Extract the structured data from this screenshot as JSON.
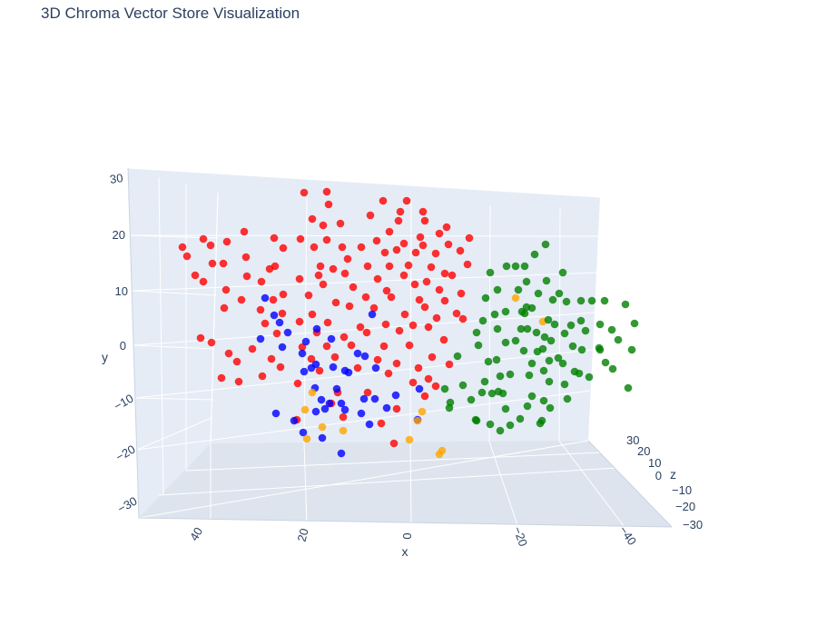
{
  "chart_data": {
    "type": "scatter",
    "title": "3D Chroma Vector Store Visualization",
    "xlabel": "x",
    "ylabel": "y",
    "zlabel": "z",
    "x_ticks": [
      "40",
      "20",
      "0",
      "−20",
      "−40"
    ],
    "y_ticks": [
      "30",
      "20",
      "10",
      "0",
      "−10",
      "−20",
      "−30"
    ],
    "z_ticks": [
      "30",
      "20",
      "10",
      "0",
      "−10",
      "−20",
      "−30"
    ],
    "colors": {
      "plot_background": "#e5ecf6",
      "grid": "#ffffff",
      "text": "#2a3f5f",
      "red": "#ff0000",
      "blue": "#0000ff",
      "orange": "#ffa500",
      "green": "#008000"
    },
    "series": [
      {
        "color": "red",
        "points": [
          [
            335,
            212
          ],
          [
            360,
            211
          ],
          [
            422,
            221
          ],
          [
            448,
            221
          ],
          [
            362,
            225
          ],
          [
            441,
            233
          ],
          [
            408,
            237
          ],
          [
            466,
            233
          ],
          [
            344,
            241
          ],
          [
            375,
            246
          ],
          [
            356,
            248
          ],
          [
            468,
            243
          ],
          [
            439,
            243
          ],
          [
            492,
            250
          ],
          [
            269,
            255
          ],
          [
            429,
            255
          ],
          [
            484,
            257
          ],
          [
            224,
            263
          ],
          [
            250,
            266
          ],
          [
            302,
            262
          ],
          [
            331,
            263
          ],
          [
            360,
            264
          ],
          [
            415,
            265
          ],
          [
            445,
            268
          ],
          [
            463,
            261
          ],
          [
            517,
            262
          ],
          [
            201,
            272
          ],
          [
            232,
            270
          ],
          [
            312,
            273
          ],
          [
            346,
            272
          ],
          [
            377,
            272
          ],
          [
            398,
            272
          ],
          [
            437,
            275
          ],
          [
            466,
            270
          ],
          [
            494,
            269
          ],
          [
            206,
            282
          ],
          [
            271,
            283
          ],
          [
            424,
            278
          ],
          [
            458,
            278
          ],
          [
            480,
            279
          ],
          [
            507,
            276
          ],
          [
            234,
            290
          ],
          [
            246,
            290
          ],
          [
            303,
            293
          ],
          [
            353,
            293
          ],
          [
            383,
            285
          ],
          [
            429,
            293
          ],
          [
            475,
            294
          ],
          [
            515,
            291
          ],
          [
            215,
            303
          ],
          [
            272,
            304
          ],
          [
            297,
            296
          ],
          [
            367,
            296
          ],
          [
            405,
            293
          ],
          [
            450,
            292
          ],
          [
            490,
            301
          ],
          [
            224,
            310
          ],
          [
            288,
            310
          ],
          [
            330,
            307
          ],
          [
            351,
            303
          ],
          [
            380,
            301
          ],
          [
            416,
            307
          ],
          [
            445,
            303
          ],
          [
            470,
            310
          ],
          [
            498,
            303
          ],
          [
            249,
            319
          ],
          [
            312,
            324
          ],
          [
            356,
            313
          ],
          [
            389,
            316
          ],
          [
            426,
            320
          ],
          [
            457,
            313
          ],
          [
            484,
            319
          ],
          [
            508,
            323
          ],
          [
            266,
            330
          ],
          [
            301,
            330
          ],
          [
            340,
            325
          ],
          [
            370,
            333
          ],
          [
            403,
            327
          ],
          [
            431,
            327
          ],
          [
            462,
            330
          ],
          [
            490,
            331
          ],
          [
            247,
            339
          ],
          [
            287,
            341
          ],
          [
            311,
            345
          ],
          [
            344,
            346
          ],
          [
            385,
            337
          ],
          [
            412,
            339
          ],
          [
            446,
            346
          ],
          [
            468,
            338
          ],
          [
            503,
            345
          ],
          [
            292,
            356
          ],
          [
            330,
            354
          ],
          [
            361,
            355
          ],
          [
            397,
            360
          ],
          [
            425,
            357
          ],
          [
            455,
            358
          ],
          [
            481,
            350
          ],
          [
            510,
            351
          ],
          [
            221,
            372
          ],
          [
            233,
            377
          ],
          [
            305,
            367
          ],
          [
            349,
            366
          ],
          [
            379,
            371
          ],
          [
            404,
            366
          ],
          [
            440,
            364
          ],
          [
            472,
            360
          ],
          [
            252,
            389
          ],
          [
            278,
            384
          ],
          [
            333,
            382
          ],
          [
            360,
            381
          ],
          [
            387,
            380
          ],
          [
            423,
            381
          ],
          [
            451,
            380
          ],
          [
            489,
            374
          ],
          [
            261,
            398
          ],
          [
            299,
            395
          ],
          [
            343,
            395
          ],
          [
            369,
            393
          ],
          [
            416,
            396
          ],
          [
            437,
            400
          ],
          [
            476,
            393
          ],
          [
            244,
            416
          ],
          [
            289,
            414
          ],
          [
            309,
            404
          ],
          [
            352,
            408
          ],
          [
            394,
            405
          ],
          [
            428,
            411
          ],
          [
            461,
            405
          ],
          [
            495,
            401
          ],
          [
            263,
            420
          ],
          [
            328,
            422
          ],
          [
            372,
            432
          ],
          [
            405,
            432
          ],
          [
            455,
            421
          ],
          [
            480,
            425
          ],
          [
            365,
            444
          ],
          [
            437,
            450
          ],
          [
            468,
            436
          ],
          [
            327,
            462
          ],
          [
            420,
            466
          ],
          [
            434,
            488
          ],
          [
            378,
            459
          ],
          [
            472,
            417
          ]
        ]
      },
      {
        "color": "blue",
        "points": [
          [
            292,
            328
          ],
          [
            302,
            347
          ],
          [
            308,
            355
          ],
          [
            317,
            366
          ],
          [
            287,
            373
          ],
          [
            311,
            382
          ],
          [
            349,
            362
          ],
          [
            410,
            346
          ],
          [
            337,
            376
          ],
          [
            365,
            373
          ],
          [
            394,
            389
          ],
          [
            333,
            389
          ],
          [
            348,
            401
          ],
          [
            343,
            405
          ],
          [
            335,
            409
          ],
          [
            367,
            404
          ],
          [
            380,
            408
          ],
          [
            384,
            410
          ],
          [
            402,
            392
          ],
          [
            414,
            405
          ],
          [
            347,
            427
          ],
          [
            371,
            428
          ],
          [
            436,
            435
          ],
          [
            462,
            428
          ],
          [
            304,
            455
          ],
          [
            324,
            463
          ],
          [
            354,
            440
          ],
          [
            363,
            444
          ],
          [
            376,
            444
          ],
          [
            401,
            439
          ],
          [
            413,
            439
          ],
          [
            426,
            449
          ],
          [
            348,
            453
          ],
          [
            358,
            450
          ],
          [
            380,
            451
          ],
          [
            398,
            455
          ],
          [
            334,
            476
          ],
          [
            355,
            482
          ],
          [
            407,
            467
          ],
          [
            460,
            462
          ],
          [
            376,
            499
          ]
        ]
      },
      {
        "color": "orange",
        "points": [
          [
            568,
            328
          ],
          [
            598,
            354
          ],
          [
            344,
            432
          ],
          [
            336,
            451
          ],
          [
            465,
            453
          ],
          [
            355,
            470
          ],
          [
            460,
            463
          ],
          [
            378,
            474
          ],
          [
            338,
            483
          ],
          [
            451,
            484
          ],
          [
            487,
            496
          ],
          [
            484,
            500
          ]
        ]
      },
      {
        "color": "green",
        "points": [
          [
            601,
            269
          ],
          [
            589,
            280
          ],
          [
            568,
            293
          ],
          [
            558,
            293
          ],
          [
            578,
            293
          ],
          [
            540,
            300
          ],
          [
            620,
            300
          ],
          [
            602,
            309
          ],
          [
            580,
            310
          ],
          [
            571,
            319
          ],
          [
            548,
            319
          ],
          [
            535,
            328
          ],
          [
            616,
            323
          ],
          [
            640,
            331
          ],
          [
            624,
            332
          ],
          [
            652,
            331
          ],
          [
            593,
            323
          ],
          [
            609,
            330
          ],
          [
            580,
            338
          ],
          [
            557,
            343
          ],
          [
            545,
            346
          ],
          [
            532,
            353
          ],
          [
            575,
            343
          ],
          [
            586,
            339
          ],
          [
            689,
            335
          ],
          [
            666,
            331
          ],
          [
            578,
            345
          ],
          [
            604,
            352
          ],
          [
            640,
            353
          ],
          [
            661,
            357
          ],
          [
            699,
            356
          ],
          [
            611,
            357
          ],
          [
            629,
            358
          ],
          [
            525,
            366
          ],
          [
            548,
            362
          ],
          [
            574,
            362
          ],
          [
            581,
            362
          ],
          [
            591,
            366
          ],
          [
            674,
            363
          ],
          [
            622,
            367
          ],
          [
            645,
            364
          ],
          [
            600,
            371
          ],
          [
            681,
            374
          ],
          [
            527,
            380
          ],
          [
            557,
            377
          ],
          [
            568,
            375
          ],
          [
            592,
            387
          ],
          [
            607,
            375
          ],
          [
            631,
            381
          ],
          [
            661,
            385
          ],
          [
            660,
            383
          ],
          [
            696,
            385
          ],
          [
            504,
            392
          ],
          [
            538,
            398
          ],
          [
            547,
            396
          ],
          [
            577,
            386
          ],
          [
            598,
            384
          ],
          [
            641,
            385
          ],
          [
            615,
            394
          ],
          [
            586,
            400
          ],
          [
            605,
            397
          ],
          [
            620,
            400
          ],
          [
            667,
            399
          ],
          [
            510,
            424
          ],
          [
            534,
            420
          ],
          [
            551,
            414
          ],
          [
            562,
            412
          ],
          [
            583,
            413
          ],
          [
            599,
            408
          ],
          [
            633,
            409
          ],
          [
            649,
            415
          ],
          [
            638,
            411
          ],
          [
            675,
            406
          ],
          [
            490,
            428
          ],
          [
            531,
            432
          ],
          [
            549,
            431
          ],
          [
            605,
            420
          ],
          [
            622,
            423
          ],
          [
            692,
            427
          ],
          [
            519,
            440
          ],
          [
            496,
            443
          ],
          [
            554,
            433
          ],
          [
            542,
            433
          ],
          [
            586,
            436
          ],
          [
            599,
            441
          ],
          [
            625,
            439
          ],
          [
            495,
            449
          ],
          [
            525,
            463
          ],
          [
            557,
            450
          ],
          [
            581,
            447
          ],
          [
            606,
            449
          ],
          [
            540,
            467
          ],
          [
            551,
            474
          ],
          [
            573,
            461
          ],
          [
            597,
            463
          ],
          [
            524,
            462
          ],
          [
            595,
            466
          ],
          [
            562,
            468
          ]
        ]
      }
    ]
  }
}
